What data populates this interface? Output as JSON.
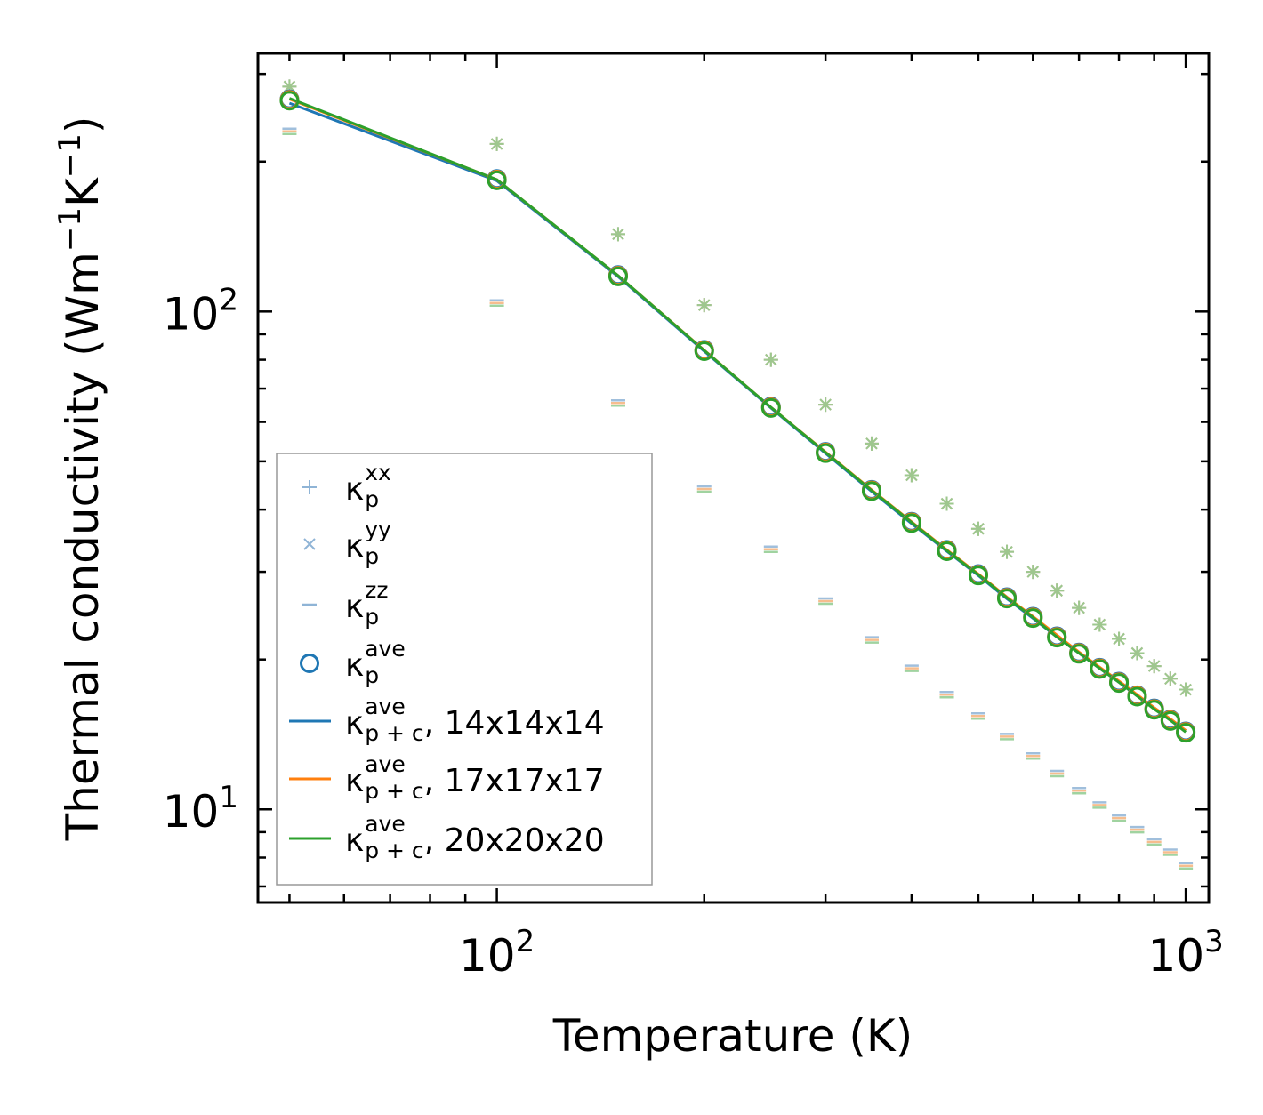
{
  "chart_data": {
    "type": "line",
    "xlabel": "Temperature (K)",
    "ylabel": {
      "base": "Thermal conductivity (Wm",
      "sup1": "−1",
      "mid": "K",
      "sup2": "−1",
      "end": ")"
    },
    "xscale": "log",
    "yscale": "log",
    "xlim": [
      45,
      1080
    ],
    "ylim": [
      6.5,
      330
    ],
    "xticks": [
      {
        "value": 100,
        "base": "10",
        "exp": "2"
      },
      {
        "value": 1000,
        "base": "10",
        "exp": "3"
      }
    ],
    "yticks": [
      {
        "value": 10,
        "base": "10",
        "exp": "1"
      },
      {
        "value": 100,
        "base": "10",
        "exp": "2"
      }
    ],
    "temperatures": [
      50,
      100,
      150,
      200,
      250,
      300,
      350,
      400,
      450,
      500,
      550,
      600,
      650,
      700,
      750,
      800,
      850,
      900,
      950,
      1000
    ],
    "series": [
      {
        "name": "kappa_p_xx",
        "marker": "plus",
        "color": "#1f77b4",
        "values": [
          283,
          217,
          143,
          103,
          80,
          65,
          54.3,
          46.9,
          41.1,
          36.6,
          32.9,
          30.0,
          27.5,
          25.4,
          23.5,
          22.0,
          20.6,
          19.4,
          18.3,
          17.4
        ]
      },
      {
        "name": "kappa_p_yy",
        "marker": "x",
        "color": "#1f77b4",
        "values": [
          283,
          217,
          143,
          103,
          80,
          65,
          54.3,
          46.9,
          41.1,
          36.6,
          32.9,
          30.0,
          27.5,
          25.4,
          23.5,
          22.0,
          20.6,
          19.4,
          18.3,
          17.4
        ]
      },
      {
        "name": "kappa_p_zz",
        "marker": "hline",
        "color": "#1f77b4",
        "values": [
          230,
          104,
          65.5,
          44,
          33.3,
          26.2,
          21.9,
          19.2,
          17.0,
          15.4,
          14.0,
          12.8,
          11.8,
          10.9,
          10.2,
          9.6,
          9.1,
          8.6,
          8.2,
          7.7
        ]
      },
      {
        "name": "kappa_p_ave",
        "marker": "circle",
        "color": "#1f77b4",
        "values": [
          266,
          184,
          118,
          83.5,
          64.2,
          52.1,
          43.7,
          37.7,
          33.1,
          29.6,
          26.6,
          24.3,
          22.2,
          20.6,
          19.2,
          18.0,
          16.9,
          15.9,
          15.1,
          14.3
        ]
      },
      {
        "name": "kappa_pc_ave 14x14x14",
        "marker": "line",
        "color": "#1f77b4",
        "values": [
          262,
          183,
          117.5,
          83.2,
          64.0,
          51.9,
          43.5,
          37.5,
          33.0,
          29.5,
          26.5,
          24.2,
          22.2,
          20.6,
          19.2,
          18.0,
          16.9,
          16.0,
          15.1,
          14.4
        ]
      },
      {
        "name": "kappa_pc_ave 17x17x17",
        "marker": "line",
        "color": "#ff7f0e",
        "values": [
          267,
          184,
          118,
          83.6,
          64.2,
          52.2,
          43.8,
          37.8,
          33.2,
          29.7,
          26.7,
          24.4,
          22.4,
          20.7,
          19.3,
          18.1,
          17.0,
          16.0,
          15.2,
          14.4
        ]
      },
      {
        "name": "kappa_pc_ave 20x20x20",
        "marker": "line",
        "color": "#2ca02c",
        "values": [
          268,
          184,
          118,
          83.5,
          64.2,
          52.1,
          43.7,
          37.7,
          33.1,
          29.6,
          26.6,
          24.3,
          22.2,
          20.6,
          19.2,
          18.0,
          16.9,
          15.9,
          15.1,
          14.3
        ]
      }
    ],
    "legend": {
      "placement": "lower-left",
      "entries": [
        {
          "marker": "plus",
          "kappa": "κ",
          "sub": "p",
          "sup": "xx",
          "suffix": ""
        },
        {
          "marker": "x",
          "kappa": "κ",
          "sub": "p",
          "sup": "yy",
          "suffix": ""
        },
        {
          "marker": "hline",
          "kappa": "κ",
          "sub": "p",
          "sup": "zz",
          "suffix": ""
        },
        {
          "marker": "circle",
          "kappa": "κ",
          "sub": "p",
          "sup": "ave",
          "suffix": ""
        },
        {
          "marker": "line",
          "color": "#1f77b4",
          "kappa": "κ",
          "sub": "p + c",
          "sup": "ave",
          "suffix": ", 14x14x14"
        },
        {
          "marker": "line",
          "color": "#ff7f0e",
          "kappa": "κ",
          "sub": "p + c",
          "sup": "ave",
          "suffix": ", 17x17x17"
        },
        {
          "marker": "line",
          "color": "#2ca02c",
          "kappa": "κ",
          "sub": "p + c",
          "sup": "ave",
          "suffix": ", 20x20x20"
        }
      ]
    },
    "colors": {
      "blue": "#1f77b4",
      "orange": "#ff7f0e",
      "green": "#2ca02c",
      "lightblue": "#8fb4d6"
    }
  }
}
